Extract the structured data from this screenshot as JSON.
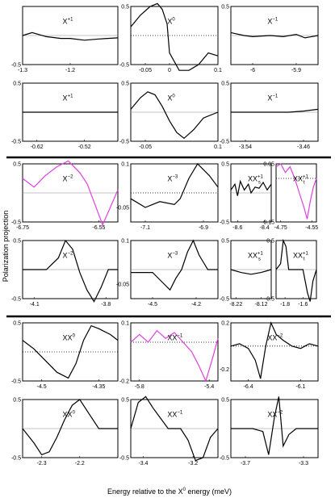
{
  "ylabel": "Polarization projection",
  "xlabel": "Energy relative to the X",
  "xlabel_sup": "0",
  "xlabel_suffix": " energy (meV)",
  "colors": {
    "exp": "#000000",
    "theory": "#000000",
    "highlight": "#e040e0",
    "baseline": "#888888"
  },
  "chart_data": [
    {
      "type": "line",
      "label": "X",
      "sup": "+1",
      "xlim": [
        -1.3,
        -1.1
      ],
      "ylim": [
        -0.5,
        0.5
      ],
      "xticks": [
        "-1.3",
        "-1.2"
      ],
      "yticks": [
        "-0.5"
      ],
      "dotted": false,
      "color": "#000000",
      "x": [
        -1.3,
        -1.28,
        -1.25,
        -1.22,
        -1.2,
        -1.17,
        -1.14,
        -1.1
      ],
      "y": [
        0.0,
        0.05,
        -0.02,
        -0.05,
        -0.05,
        -0.08,
        -0.06,
        -0.04
      ]
    },
    {
      "type": "line",
      "label": "X",
      "sup": "0",
      "xlim": [
        -0.08,
        0.1
      ],
      "ylim": [
        -0.5,
        0.5
      ],
      "xticks": [
        "-0.05",
        "0",
        "0.1"
      ],
      "yticks": [
        "0.5",
        "-0.5"
      ],
      "dotted": true,
      "color": "#000000",
      "x": [
        -0.08,
        -0.06,
        -0.04,
        -0.025,
        -0.015,
        -0.005,
        0.0,
        0.02,
        0.04,
        0.06,
        0.08,
        0.1
      ],
      "y": [
        0.15,
        0.35,
        0.5,
        0.55,
        0.45,
        0.2,
        -0.3,
        -0.6,
        -0.6,
        -0.5,
        -0.3,
        -0.35
      ]
    },
    {
      "type": "line",
      "label": "X",
      "sup": "−1",
      "xlim": [
        -6.05,
        -5.85
      ],
      "ylim": [
        -0.5,
        0.5
      ],
      "xticks": [
        "-6",
        "-5.9"
      ],
      "yticks": [
        "0.5"
      ],
      "dotted": false,
      "color": "#000000",
      "x": [
        -6.05,
        -6.02,
        -6.0,
        -5.96,
        -5.93,
        -5.9,
        -5.88,
        -5.85
      ],
      "y": [
        0.05,
        0.0,
        -0.02,
        0.0,
        -0.02,
        0.02,
        -0.04,
        0.0
      ]
    },
    {
      "type": "line",
      "label": "X",
      "sup": "+1",
      "xlim": [
        -0.65,
        -0.45
      ],
      "ylim": [
        -0.5,
        0.5
      ],
      "xticks": [
        "-0.62",
        "-0.52"
      ],
      "yticks": [
        "0.5",
        "-0.5"
      ],
      "dotted": false,
      "color": "#000000",
      "x": [
        -0.65,
        -0.6,
        -0.55,
        -0.5,
        -0.45
      ],
      "y": [
        0.0,
        0.0,
        0.0,
        0.0,
        0.0
      ]
    },
    {
      "type": "line",
      "label": "X",
      "sup": "0",
      "xlim": [
        -0.08,
        0.1
      ],
      "ylim": [
        -0.5,
        0.5
      ],
      "xticks": [
        "-0.05",
        "0.1"
      ],
      "yticks": [
        "0.5",
        "-0.5"
      ],
      "dotted": false,
      "color": "#000000",
      "x": [
        -0.08,
        -0.06,
        -0.045,
        -0.03,
        -0.015,
        0.0,
        0.015,
        0.03,
        0.05,
        0.07,
        0.1
      ],
      "y": [
        0.05,
        0.25,
        0.35,
        0.3,
        0.1,
        -0.15,
        -0.35,
        -0.45,
        -0.3,
        -0.1,
        0.0
      ]
    },
    {
      "type": "line",
      "label": "X",
      "sup": "−1",
      "xlim": [
        -3.56,
        -3.44
      ],
      "ylim": [
        -0.5,
        0.5
      ],
      "xticks": [
        "-3.54",
        "-3.46"
      ],
      "yticks": [
        "0.5",
        "-0.5"
      ],
      "dotted": false,
      "color": "#000000",
      "x": [
        -3.56,
        -3.52,
        -3.48,
        -3.46,
        -3.44
      ],
      "y": [
        0.0,
        0.0,
        0.0,
        0.02,
        0.05
      ]
    },
    {
      "type": "line",
      "label": "X",
      "sup": "−2",
      "xlim": [
        -6.75,
        -6.5
      ],
      "ylim": [
        -0.5,
        0.5
      ],
      "xticks": [
        "-6.75",
        "-6.55"
      ],
      "yticks": [
        "0.5",
        "-0.5"
      ],
      "dotted": false,
      "color": "#e040e0",
      "x": [
        -6.75,
        -6.72,
        -6.69,
        -6.66,
        -6.63,
        -6.6,
        -6.58,
        -6.56,
        -6.54,
        -6.52,
        -6.5
      ],
      "y": [
        0.25,
        0.1,
        0.3,
        0.45,
        0.55,
        0.35,
        0.15,
        -0.2,
        -0.55,
        -0.25,
        0.05
      ]
    },
    {
      "type": "line",
      "label": "X",
      "sup": "−3",
      "xlim": [
        -7.15,
        -6.85
      ],
      "ylim": [
        -0.1,
        0.1
      ],
      "xticks": [
        "-7.1",
        "-6.9"
      ],
      "yticks": [
        "0.1",
        "-0.05"
      ],
      "dotted": true,
      "color": "#000000",
      "x": [
        -7.15,
        -7.1,
        -7.05,
        -7.0,
        -6.98,
        -6.95,
        -6.92,
        -6.9,
        -6.88,
        -6.85
      ],
      "y": [
        -0.02,
        -0.05,
        -0.03,
        -0.04,
        -0.02,
        0.05,
        0.1,
        0.08,
        0.06,
        0.02
      ]
    },
    {
      "type": "line",
      "label": "XX",
      "sup": "+1",
      "sub": "s",
      "xlim": [
        -8.65,
        -8.35
      ],
      "ylim": [
        -0.5,
        0.5
      ],
      "xticks": [
        "-8.6",
        "-8.4"
      ],
      "yticks": [
        "0.5",
        "-0.5"
      ],
      "dotted": false,
      "color": "#000000",
      "x": [
        -8.65,
        -8.62,
        -8.6,
        -8.58,
        -8.55,
        -8.52,
        -8.5,
        -8.47,
        -8.44,
        -8.41,
        -8.38,
        -8.35
      ],
      "y": [
        0.05,
        0.15,
        -0.05,
        0.2,
        0.05,
        0.15,
        0.0,
        0.1,
        0.08,
        0.18,
        0.05,
        0.15
      ]
    },
    {
      "type": "line",
      "label": "XX",
      "sup": "+1",
      "sub": "t",
      "xlim": [
        -4.78,
        -4.52
      ],
      "ylim": [
        -0.15,
        0.05
      ],
      "xticks": [
        "-4.75",
        "-4.55"
      ],
      "yticks": [
        "0.05",
        "-0.15"
      ],
      "dotted": true,
      "color": "#e040e0",
      "x": [
        -4.78,
        -4.75,
        -4.72,
        -4.69,
        -4.66,
        -4.63,
        -4.6,
        -4.58,
        -4.56,
        -4.54,
        -4.52
      ],
      "y": [
        0.04,
        0.05,
        0.02,
        0.04,
        0.0,
        -0.05,
        -0.1,
        -0.14,
        -0.08,
        -0.03,
        0.0
      ]
    },
    {
      "type": "line",
      "label": "X",
      "sup": "−2",
      "xlim": [
        -4.15,
        -3.75
      ],
      "ylim": [
        -0.5,
        0.5
      ],
      "xticks": [
        "-4.1",
        "-3.8"
      ],
      "yticks": [
        "0.5",
        "-0.5"
      ],
      "dotted": false,
      "color": "#000000",
      "x": [
        -4.15,
        -4.05,
        -4.0,
        -3.97,
        -3.94,
        -3.91,
        -3.88,
        -3.85,
        -3.82,
        -3.79,
        -3.75
      ],
      "y": [
        0.0,
        0.0,
        0.2,
        0.5,
        0.35,
        -0.05,
        -0.35,
        -0.55,
        -0.3,
        0.0,
        0.0
      ]
    },
    {
      "type": "line",
      "label": "X",
      "sup": "−3",
      "xlim": [
        -4.65,
        -4.05
      ],
      "ylim": [
        -0.1,
        0.1
      ],
      "xticks": [
        "-4.5",
        "-4.2"
      ],
      "yticks": [
        "0.1",
        "-0.05"
      ],
      "dotted": false,
      "color": "#000000",
      "x": [
        -4.65,
        -4.5,
        -4.42,
        -4.38,
        -4.34,
        -4.3,
        -4.26,
        -4.22,
        -4.18,
        -4.12,
        -4.05
      ],
      "y": [
        -0.01,
        -0.01,
        -0.05,
        -0.07,
        -0.03,
        0.0,
        0.06,
        0.1,
        0.05,
        0.0,
        0.0
      ]
    },
    {
      "type": "line",
      "label": "XX",
      "sup": "+1",
      "sub": "s",
      "xlim": [
        -8.24,
        -8.08
      ],
      "ylim": [
        -0.5,
        0.5
      ],
      "xticks": [
        "-8.22",
        "-8.12"
      ],
      "yticks": [
        "0.5",
        "-0.5"
      ],
      "dotted": false,
      "color": "#000000",
      "x": [
        -8.24,
        -8.2,
        -8.16,
        -8.12,
        -8.08
      ],
      "y": [
        0.0,
        -0.05,
        -0.08,
        -0.05,
        0.0
      ]
    },
    {
      "type": "line",
      "label": "XX",
      "sup": "+1",
      "sub": "t",
      "xlim": [
        -1.9,
        -1.45
      ],
      "ylim": [
        -0.5,
        0.5
      ],
      "xticks": [
        "-1.8",
        "-1.6"
      ],
      "yticks": [
        "0.5",
        "-0.5"
      ],
      "dotted": false,
      "color": "#000000",
      "x": [
        -1.9,
        -1.85,
        -1.82,
        -1.79,
        -1.76,
        -1.7,
        -1.6,
        -1.55,
        -1.52,
        -1.49,
        -1.45
      ],
      "y": [
        0.0,
        0.1,
        0.5,
        0.4,
        0.0,
        0.0,
        0.0,
        -0.4,
        -0.55,
        -0.2,
        0.0
      ]
    },
    {
      "type": "line",
      "label": "XX",
      "sup": "0",
      "xlim": [
        -4.55,
        -4.3
      ],
      "ylim": [
        -0.5,
        0.5
      ],
      "xticks": [
        "-4.5",
        "-4.35"
      ],
      "yticks": [
        "0.5",
        "-0.5"
      ],
      "dotted": true,
      "color": "#000000",
      "x": [
        -4.55,
        -4.52,
        -4.49,
        -4.46,
        -4.43,
        -4.41,
        -4.39,
        -4.37,
        -4.35,
        -4.32,
        -4.3
      ],
      "y": [
        0.2,
        0.05,
        -0.15,
        -0.35,
        -0.45,
        -0.2,
        0.2,
        0.45,
        0.4,
        0.3,
        0.2
      ]
    },
    {
      "type": "line",
      "label": "XX",
      "sup": "−1",
      "xlim": [
        -5.85,
        -5.35
      ],
      "ylim": [
        -0.2,
        0.1
      ],
      "xticks": [
        "-5.8",
        "-5.4"
      ],
      "yticks": [
        "0.1",
        "-0.2"
      ],
      "dotted": true,
      "color": "#e040e0",
      "x": [
        -5.85,
        -5.8,
        -5.75,
        -5.7,
        -5.65,
        -5.6,
        -5.55,
        -5.5,
        -5.46,
        -5.42,
        -5.38,
        -5.35
      ],
      "y": [
        0.0,
        0.04,
        0.0,
        0.06,
        0.02,
        0.05,
        0.0,
        -0.05,
        -0.12,
        -0.2,
        -0.08,
        0.02
      ]
    },
    {
      "type": "line",
      "label": "XX",
      "sup": "−2",
      "xlim": [
        -6.5,
        -6.0
      ],
      "ylim": [
        -0.3,
        0.2
      ],
      "xticks": [
        "-6.4",
        "-6.1"
      ],
      "yticks": [
        "0.2",
        "-0.2"
      ],
      "dotted": true,
      "color": "#000000",
      "x": [
        -6.5,
        -6.45,
        -6.4,
        -6.36,
        -6.33,
        -6.3,
        -6.27,
        -6.24,
        -6.2,
        -6.15,
        -6.1,
        -6.05,
        -6.0
      ],
      "y": [
        0.0,
        0.02,
        -0.02,
        -0.12,
        -0.28,
        0.0,
        0.2,
        0.1,
        0.05,
        0.0,
        -0.02,
        0.02,
        0.0
      ]
    },
    {
      "type": "line",
      "label": "XX",
      "sup": "0",
      "xlim": [
        -2.35,
        -2.1
      ],
      "ylim": [
        -0.5,
        0.5
      ],
      "xticks": [
        "-2.3",
        "-2.2"
      ],
      "yticks": [
        "0.5",
        "-0.5"
      ],
      "dotted": false,
      "color": "#000000",
      "x": [
        -2.35,
        -2.32,
        -2.3,
        -2.28,
        -2.26,
        -2.24,
        -2.22,
        -2.2,
        -2.18,
        -2.15,
        -2.1
      ],
      "y": [
        0.0,
        -0.25,
        -0.45,
        -0.4,
        -0.15,
        0.15,
        0.4,
        0.5,
        0.3,
        0.0,
        0.0
      ]
    },
    {
      "type": "line",
      "label": "XX",
      "sup": "−1",
      "xlim": [
        -3.45,
        -3.1
      ],
      "ylim": [
        -0.5,
        0.5
      ],
      "xticks": [
        "-3.4",
        "-3.2"
      ],
      "yticks": [
        "0.5",
        "-0.5"
      ],
      "dotted": false,
      "color": "#000000",
      "x": [
        -3.45,
        -3.42,
        -3.39,
        -3.36,
        -3.3,
        -3.25,
        -3.22,
        -3.19,
        -3.16,
        -3.13,
        -3.1
      ],
      "y": [
        0.0,
        0.45,
        0.55,
        0.35,
        0.0,
        0.0,
        -0.2,
        -0.55,
        -0.5,
        -0.15,
        0.0
      ]
    },
    {
      "type": "line",
      "label": "XX",
      "sup": "−2",
      "xlim": [
        -3.8,
        -3.2
      ],
      "ylim": [
        -0.5,
        0.5
      ],
      "xticks": [
        "-3.7",
        "-3.3"
      ],
      "yticks": [
        "0.5",
        "-0.5"
      ],
      "dotted": false,
      "color": "#000000",
      "x": [
        -3.8,
        -3.65,
        -3.58,
        -3.54,
        -3.5,
        -3.47,
        -3.44,
        -3.4,
        -3.35,
        -3.25,
        -3.2
      ],
      "y": [
        0.0,
        0.0,
        -0.05,
        -0.45,
        0.2,
        0.55,
        -0.3,
        -0.1,
        0.0,
        0.0,
        0.0
      ]
    }
  ]
}
